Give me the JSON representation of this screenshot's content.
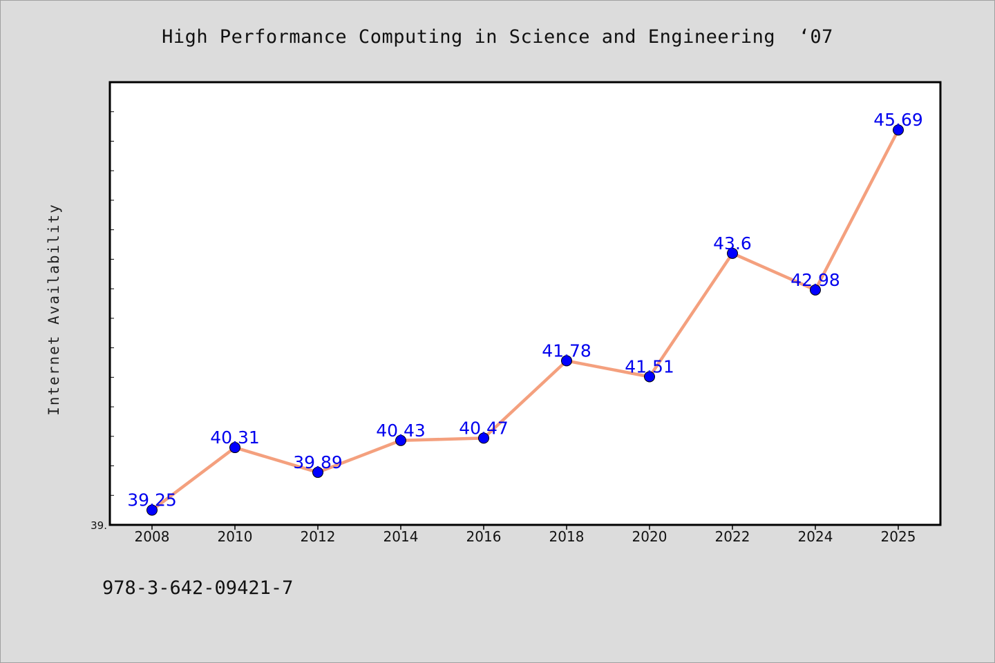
{
  "chart_data": {
    "type": "line",
    "title": "High Performance Computing in Science and Engineering  ‘07",
    "ylabel": "Internet Availability",
    "xlabel": "",
    "categories": [
      "2008",
      "2010",
      "2012",
      "2014",
      "2016",
      "2018",
      "2020",
      "2022",
      "2024",
      "2025"
    ],
    "series": [
      {
        "values": [
          39.25,
          40.31,
          39.89,
          40.43,
          40.47,
          41.78,
          41.51,
          43.6,
          42.98,
          45.69
        ],
        "labels": [
          "39.25",
          "40.31",
          "39.89",
          "40.43",
          "40.47",
          "41.78",
          "41.51",
          "43.6",
          "42.98",
          "45.69"
        ]
      }
    ],
    "ylim": [
      39.0,
      46.5
    ],
    "y_tick_labels": [
      "39."
    ],
    "grid": false,
    "legend": "none",
    "line_color": "#f4a07e",
    "marker_color": "#0000ff",
    "data_label_color": "#0000ee"
  },
  "footer": {
    "code": "978-3-642-09421-7"
  }
}
